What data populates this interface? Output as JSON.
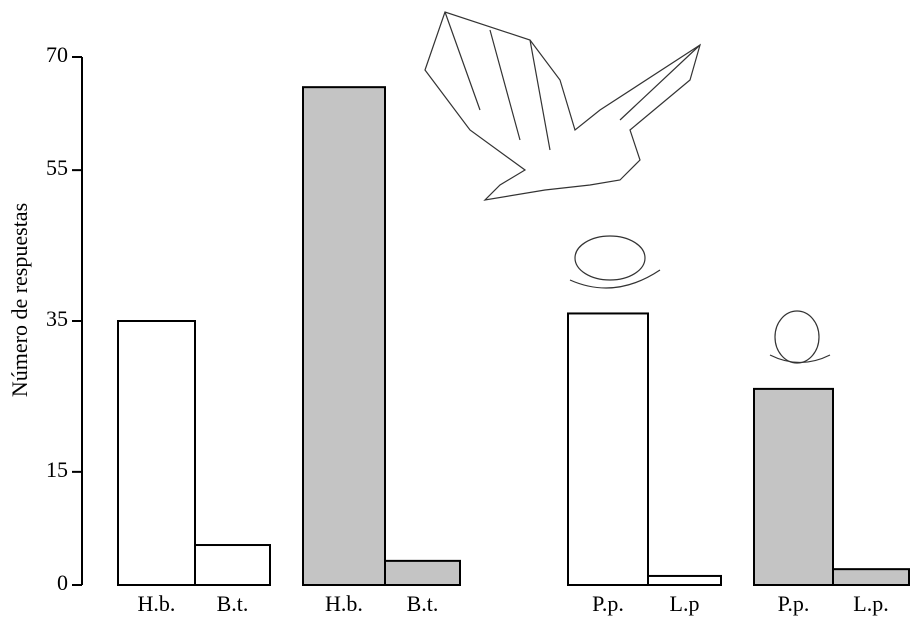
{
  "chart_data": {
    "type": "bar",
    "y_label": "Número de respuestas",
    "categories": [
      "H.b.",
      "B.t.",
      "H.b.",
      "B.t.",
      "P.p.",
      "L.p",
      "P.p.",
      "L.p."
    ],
    "values": [
      35,
      5.3,
      66,
      3.2,
      36,
      1.2,
      26,
      2.1
    ],
    "colors": [
      "#ffffff",
      "#ffffff",
      "#c4c4c4",
      "#c4c4c4",
      "#ffffff",
      "#ffffff",
      "#c4c4c4",
      "#c4c4c4"
    ],
    "ylim": [
      0,
      70
    ],
    "yticks": [
      0,
      15,
      35,
      55,
      70
    ],
    "grid": false
  }
}
